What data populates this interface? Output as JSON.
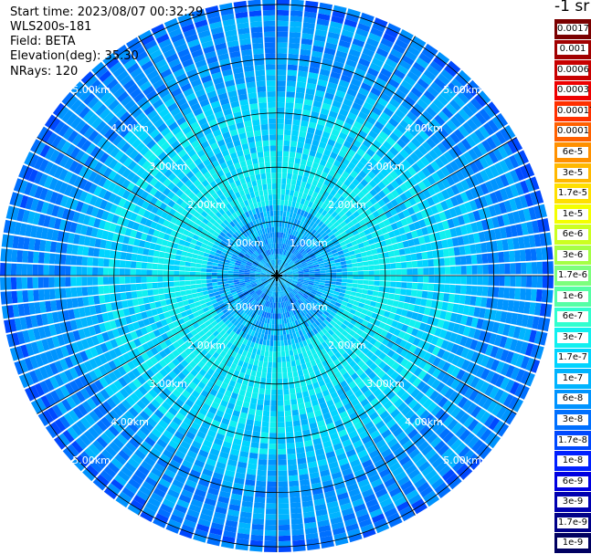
{
  "header": {
    "start_time": "Start time: 2023/08/07 00:32:29",
    "instrument": "WLS200s-181",
    "field": "Field: BETA",
    "elevation": "Elevation(deg): 35.30",
    "nrays": "NRays: 120"
  },
  "colorbar": {
    "unit_label": "-1 sr",
    "levels": [
      {
        "label": "0.0017",
        "color": "#7a0000"
      },
      {
        "label": "0.001",
        "color": "#a10000"
      },
      {
        "label": "0.0006",
        "color": "#c80000"
      },
      {
        "label": "0.0003",
        "color": "#ee0000"
      },
      {
        "label": "0.00017",
        "color": "#ff3000"
      },
      {
        "label": "0.0001",
        "color": "#ff6000"
      },
      {
        "label": "6e-5",
        "color": "#ff9000"
      },
      {
        "label": "3e-5",
        "color": "#ffb800"
      },
      {
        "label": "1.7e-5",
        "color": "#ffdf00"
      },
      {
        "label": "1e-5",
        "color": "#f4ff00"
      },
      {
        "label": "6e-6",
        "color": "#ccff20"
      },
      {
        "label": "3e-6",
        "color": "#a5ff45"
      },
      {
        "label": "1.7e-6",
        "color": "#7dff7d"
      },
      {
        "label": "1e-6",
        "color": "#55ffa5"
      },
      {
        "label": "6e-7",
        "color": "#30ffcf"
      },
      {
        "label": "3e-7",
        "color": "#10f0f0"
      },
      {
        "label": "1.7e-7",
        "color": "#00d4ff"
      },
      {
        "label": "1e-7",
        "color": "#00b4ff"
      },
      {
        "label": "6e-8",
        "color": "#0094ff"
      },
      {
        "label": "3e-8",
        "color": "#0070ff"
      },
      {
        "label": "1.7e-8",
        "color": "#0048ff"
      },
      {
        "label": "1e-8",
        "color": "#0020ff"
      },
      {
        "label": "6e-9",
        "color": "#0000e0"
      },
      {
        "label": "3e-9",
        "color": "#0000b0"
      },
      {
        "label": "1.7e-9",
        "color": "#000088"
      },
      {
        "label": "1e-9",
        "color": "#000060"
      }
    ]
  },
  "chart_data": {
    "type": "heatmap",
    "projection": "polar",
    "field": "BETA",
    "nrays": 120,
    "elevation_deg": 35.3,
    "range_rings_km": [
      1,
      2,
      3,
      4,
      5
    ],
    "range_ring_labels": [
      "1.00km",
      "2.00km",
      "3.00km",
      "4.00km",
      "5.00km"
    ],
    "max_range_km": 5.1,
    "spoke_angles_deg": [
      0,
      30,
      60,
      90,
      120,
      150,
      180,
      210,
      240,
      270,
      300,
      330
    ],
    "radial_profile": [
      {
        "range_km": 0.3,
        "level": "1e-7"
      },
      {
        "range_km": 0.6,
        "level": "6e-8"
      },
      {
        "range_km": 1.0,
        "level": "1e-7"
      },
      {
        "range_km": 1.5,
        "level": "3e-7"
      },
      {
        "range_km": 2.0,
        "level": "3e-7"
      },
      {
        "range_km": 2.5,
        "level": "1.7e-7"
      },
      {
        "range_km": 3.0,
        "level": "1.7e-7"
      },
      {
        "range_km": 3.5,
        "level": "1e-7"
      },
      {
        "range_km": 4.0,
        "level": "6e-8"
      },
      {
        "range_km": 4.5,
        "level": "6e-8"
      },
      {
        "range_km": 5.0,
        "level": "3e-8"
      }
    ]
  }
}
